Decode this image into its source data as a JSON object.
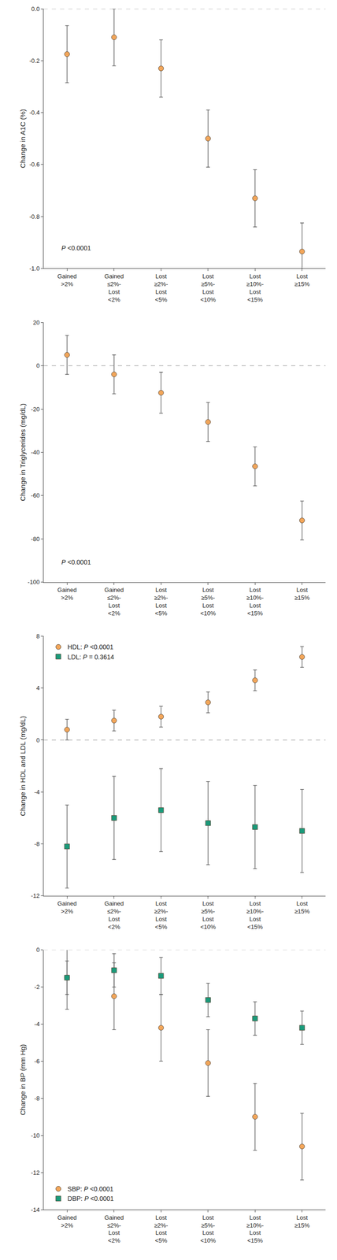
{
  "chart_data": [
    {
      "type": "scatter",
      "y_label": "Change in A1C (%)",
      "categories": [
        "Gained >2%",
        "Gained ≤2%- Lost <2%",
        "Lost ≥2%- Lost <5%",
        "Lost ≥5%- Lost <10%",
        "Lost ≥10%- Lost <15%",
        "Lost ≥15%"
      ],
      "series": [
        {
          "color": "#F2A65A",
          "marker": "circle",
          "values": [
            -0.175,
            -0.11,
            -0.23,
            -0.5,
            -0.73,
            -0.935
          ],
          "error": [
            0.11,
            0.11,
            0.11,
            0.11,
            0.11,
            0.11
          ]
        }
      ],
      "annotations": [
        "P <0.0001"
      ],
      "reference_line": 0,
      "ylim": [
        -1.0,
        0.0
      ],
      "yticks": [
        {
          "value": -1.0,
          "label": "-1.0"
        },
        -0.8,
        -0.6,
        -0.4,
        -0.2,
        {
          "value": 0.0,
          "label": "0.0"
        }
      ]
    },
    {
      "type": "scatter",
      "y_label": "Change in Triglycerides (mg/dL)",
      "categories": [
        "Gained >2%",
        "Gained ≤2%- Lost <2%",
        "Lost ≥2%- Lost <5%",
        "Lost ≥5%- Lost <10%",
        "Lost ≥10%- Lost <15%",
        "Lost ≥15%"
      ],
      "series": [
        {
          "color": "#F2A65A",
          "marker": "circle",
          "values": [
            5,
            -4,
            -12.5,
            -26,
            -46.5,
            -71.5
          ],
          "error": [
            9,
            9,
            9.5,
            9,
            9,
            9
          ]
        }
      ],
      "annotations": [
        "P <0.0001"
      ],
      "reference_line": 0,
      "ylim": [
        -100,
        20
      ],
      "yticks": [
        -100,
        -80,
        -60,
        -40,
        -20,
        0,
        20
      ]
    },
    {
      "type": "scatter",
      "y_label": "Change in HDL and LDL (mg/dL)",
      "categories": [
        "Gained >2%",
        "Gained ≤2%- Lost <2%",
        "Lost ≥2%- Lost <5%",
        "Lost ≥5%- Lost <10%",
        "Lost ≥10%- Lost <15%",
        "Lost ≥15%"
      ],
      "series": [
        {
          "name": "HDL: P <0.0001",
          "color": "#F2A65A",
          "marker": "circle",
          "values": [
            0.8,
            1.5,
            1.8,
            2.9,
            4.6,
            6.4
          ],
          "error": [
            0.8,
            0.8,
            0.8,
            0.8,
            0.8,
            0.8
          ]
        },
        {
          "name": "LDL: P = 0.3614",
          "color": "#1A9A7A",
          "marker": "square",
          "values": [
            -8.2,
            -6.0,
            -5.4,
            -6.4,
            -6.7,
            -7.0
          ],
          "error": [
            3.2,
            3.2,
            3.2,
            3.2,
            3.2,
            3.2
          ]
        }
      ],
      "legend": "upper left",
      "reference_line": 0,
      "ylim": [
        -12,
        8
      ],
      "yticks": [
        -12,
        -8,
        -4,
        0,
        4,
        8
      ]
    },
    {
      "type": "scatter",
      "y_label": "Change in BP (mm Hg)",
      "categories": [
        "Gained >2%",
        "Gained ≤2%- Lost <2%",
        "Lost ≥2%- Lost <5%",
        "Lost ≥5%- Lost <10%",
        "Lost ≥10%- Lost <15%",
        "Lost ≥15%"
      ],
      "series": [
        {
          "name": "SBP: P <0.0001",
          "color": "#F2A65A",
          "marker": "circle",
          "values": [
            -1.5,
            -2.5,
            -4.2,
            -6.1,
            -9.0,
            -10.6
          ],
          "error": [
            1.7,
            1.8,
            1.8,
            1.8,
            1.8,
            1.8
          ]
        },
        {
          "name": "DBP: P <0.0001",
          "color": "#1A9A7A",
          "marker": "square",
          "values": [
            -1.5,
            -1.1,
            -1.4,
            -2.7,
            -3.7,
            -4.2
          ],
          "error": [
            0.9,
            0.9,
            1.0,
            0.9,
            0.9,
            0.9
          ]
        }
      ],
      "legend": "lower left",
      "reference_line": 0,
      "ylim": [
        -14,
        0
      ],
      "yticks": [
        -14,
        -12,
        -10,
        -8,
        -6,
        -4,
        -2,
        0
      ]
    }
  ]
}
